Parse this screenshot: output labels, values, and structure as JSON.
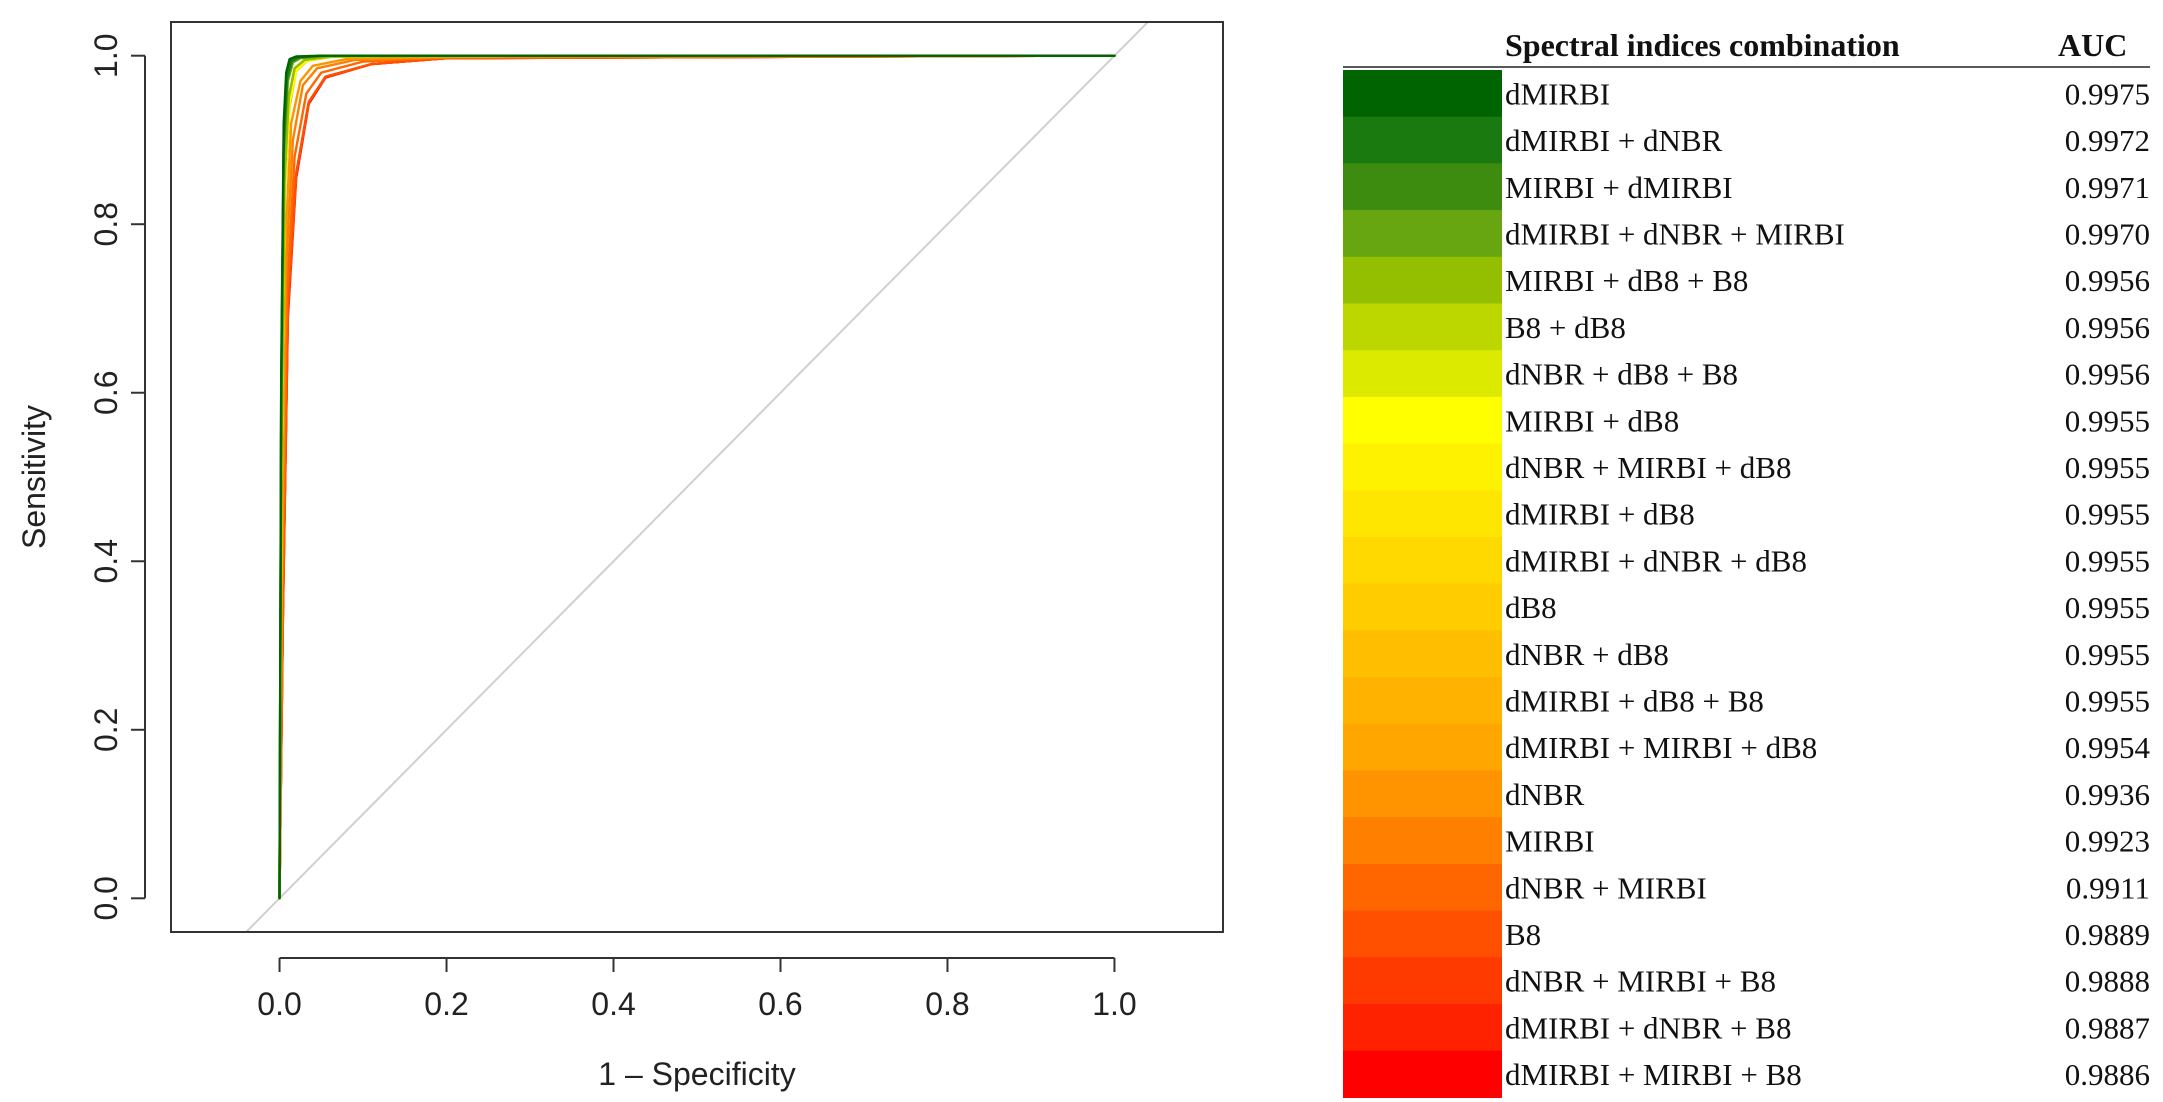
{
  "chart_data": {
    "type": "line",
    "xlabel": "1 – Specificity",
    "ylabel": "Sensitivity",
    "xlim": [
      -0.13,
      1.13
    ],
    "ylim": [
      -0.04,
      1.04
    ],
    "x_ticks": [
      "0.0",
      "0.2",
      "0.4",
      "0.6",
      "0.8",
      "1.0"
    ],
    "y_ticks": [
      "0.0",
      "0.2",
      "0.4",
      "0.6",
      "0.8",
      "1.0"
    ],
    "reference_line": {
      "x": [
        -0.04,
        1.04
      ],
      "y": [
        -0.04,
        1.04
      ],
      "color": "#d0d0d0"
    },
    "grid": false,
    "legend_position": "right",
    "legend_header": {
      "name": "Spectral indices combination",
      "auc": "AUC"
    },
    "series": [
      {
        "name": "dMIRBI",
        "auc": "0.9975",
        "color": "#006400",
        "x": [
          0,
          0.002,
          0.005,
          0.008,
          0.012,
          0.02,
          0.05,
          0.3,
          1
        ],
        "y": [
          0,
          0.62,
          0.92,
          0.98,
          0.996,
          0.999,
          1,
          1,
          1
        ]
      },
      {
        "name": "dMIRBI + dNBR",
        "auc": "0.9972",
        "color": "#1a7a10",
        "x": [
          0,
          0.002,
          0.005,
          0.009,
          0.014,
          0.022,
          0.05,
          0.3,
          1
        ],
        "y": [
          0,
          0.6,
          0.9,
          0.975,
          0.994,
          0.998,
          1,
          1,
          1
        ]
      },
      {
        "name": "MIRBI + dMIRBI",
        "auc": "0.9971",
        "color": "#3d8c10",
        "x": [
          0,
          0.002,
          0.005,
          0.009,
          0.015,
          0.024,
          0.05,
          0.3,
          1
        ],
        "y": [
          0,
          0.58,
          0.89,
          0.972,
          0.993,
          0.998,
          1,
          1,
          1
        ]
      },
      {
        "name": "dMIRBI + dNBR + MIRBI",
        "auc": "0.9970",
        "color": "#67a610",
        "x": [
          0,
          0.002,
          0.005,
          0.01,
          0.016,
          0.025,
          0.06,
          0.3,
          1
        ],
        "y": [
          0,
          0.57,
          0.88,
          0.97,
          0.992,
          0.997,
          1,
          1,
          1
        ]
      },
      {
        "name": "MIRBI + dB8 + B8",
        "auc": "0.9956",
        "color": "#94bf00",
        "x": [
          0,
          0.002,
          0.006,
          0.011,
          0.018,
          0.03,
          0.06,
          0.3,
          1
        ],
        "y": [
          0,
          0.5,
          0.85,
          0.95,
          0.985,
          0.995,
          0.999,
          1,
          1
        ]
      },
      {
        "name": "B8 + dB8",
        "auc": "0.9956",
        "color": "#bcd600",
        "x": [
          0,
          0.002,
          0.006,
          0.011,
          0.018,
          0.03,
          0.06,
          0.3,
          1
        ],
        "y": [
          0,
          0.5,
          0.85,
          0.95,
          0.985,
          0.995,
          0.999,
          1,
          1
        ]
      },
      {
        "name": "dNBR + dB8 + B8",
        "auc": "0.9956",
        "color": "#dcea00",
        "x": [
          0,
          0.002,
          0.006,
          0.011,
          0.018,
          0.03,
          0.06,
          0.3,
          1
        ],
        "y": [
          0,
          0.5,
          0.85,
          0.95,
          0.985,
          0.995,
          0.999,
          1,
          1
        ]
      },
      {
        "name": "MIRBI + dB8",
        "auc": "0.9955",
        "color": "#ffff00",
        "x": [
          0,
          0.002,
          0.006,
          0.012,
          0.02,
          0.032,
          0.06,
          0.3,
          1
        ],
        "y": [
          0,
          0.48,
          0.84,
          0.945,
          0.983,
          0.994,
          0.999,
          1,
          1
        ]
      },
      {
        "name": "dNBR + MIRBI + dB8",
        "auc": "0.9955",
        "color": "#fff200",
        "x": [
          0,
          0.002,
          0.006,
          0.012,
          0.02,
          0.032,
          0.06,
          0.3,
          1
        ],
        "y": [
          0,
          0.48,
          0.84,
          0.945,
          0.983,
          0.994,
          0.999,
          1,
          1
        ]
      },
      {
        "name": "dMIRBI + dB8",
        "auc": "0.9955",
        "color": "#ffe600",
        "x": [
          0,
          0.002,
          0.006,
          0.012,
          0.02,
          0.032,
          0.06,
          0.3,
          1
        ],
        "y": [
          0,
          0.48,
          0.84,
          0.945,
          0.983,
          0.994,
          0.999,
          1,
          1
        ]
      },
      {
        "name": "dMIRBI + dNBR + dB8",
        "auc": "0.9955",
        "color": "#ffd900",
        "x": [
          0,
          0.002,
          0.006,
          0.012,
          0.02,
          0.032,
          0.06,
          0.3,
          1
        ],
        "y": [
          0,
          0.48,
          0.84,
          0.945,
          0.983,
          0.994,
          0.999,
          1,
          1
        ]
      },
      {
        "name": "dB8",
        "auc": "0.9955",
        "color": "#ffcc00",
        "x": [
          0,
          0.002,
          0.006,
          0.012,
          0.02,
          0.032,
          0.06,
          0.3,
          1
        ],
        "y": [
          0,
          0.48,
          0.84,
          0.945,
          0.983,
          0.994,
          0.999,
          1,
          1
        ]
      },
      {
        "name": "dNBR + dB8",
        "auc": "0.9955",
        "color": "#ffbf00",
        "x": [
          0,
          0.002,
          0.006,
          0.012,
          0.02,
          0.032,
          0.06,
          0.3,
          1
        ],
        "y": [
          0,
          0.48,
          0.84,
          0.945,
          0.983,
          0.994,
          0.999,
          1,
          1
        ]
      },
      {
        "name": "dMIRBI + dB8 + B8",
        "auc": "0.9955",
        "color": "#ffb300",
        "x": [
          0,
          0.002,
          0.006,
          0.012,
          0.02,
          0.032,
          0.06,
          0.3,
          1
        ],
        "y": [
          0,
          0.48,
          0.84,
          0.945,
          0.983,
          0.994,
          0.999,
          1,
          1
        ]
      },
      {
        "name": "dMIRBI + MIRBI + dB8",
        "auc": "0.9954",
        "color": "#ffa600",
        "x": [
          0,
          0.002,
          0.006,
          0.012,
          0.02,
          0.033,
          0.065,
          0.3,
          1
        ],
        "y": [
          0,
          0.47,
          0.83,
          0.94,
          0.982,
          0.994,
          0.999,
          1,
          1
        ]
      },
      {
        "name": "dNBR",
        "auc": "0.9936",
        "color": "#ff9400",
        "x": [
          0,
          0.003,
          0.007,
          0.014,
          0.025,
          0.04,
          0.08,
          0.2,
          0.4,
          1
        ],
        "y": [
          0,
          0.4,
          0.78,
          0.92,
          0.97,
          0.988,
          0.996,
          0.999,
          1,
          1
        ]
      },
      {
        "name": "MIRBI",
        "auc": "0.9923",
        "color": "#ff7f00",
        "x": [
          0,
          0.003,
          0.008,
          0.016,
          0.028,
          0.045,
          0.09,
          0.2,
          0.94,
          1
        ],
        "y": [
          0,
          0.38,
          0.75,
          0.9,
          0.965,
          0.985,
          0.995,
          0.998,
          1,
          1
        ]
      },
      {
        "name": "dNBR + MIRBI",
        "auc": "0.9911",
        "color": "#ff6600",
        "x": [
          0,
          0.004,
          0.009,
          0.018,
          0.032,
          0.05,
          0.1,
          0.2,
          0.94,
          1
        ],
        "y": [
          0,
          0.36,
          0.72,
          0.88,
          0.955,
          0.98,
          0.993,
          0.998,
          1,
          1
        ]
      },
      {
        "name": "B8",
        "auc": "0.9889",
        "color": "#ff5000",
        "x": [
          0,
          0.004,
          0.01,
          0.02,
          0.035,
          0.055,
          0.11,
          0.2,
          0.94,
          1
        ],
        "y": [
          0,
          0.34,
          0.7,
          0.86,
          0.945,
          0.975,
          0.99,
          0.997,
          1,
          1
        ]
      },
      {
        "name": "dNBR + MIRBI + B8",
        "auc": "0.9888",
        "color": "#ff3a00",
        "x": [
          0,
          0.004,
          0.01,
          0.02,
          0.035,
          0.055,
          0.11,
          0.2,
          0.94,
          1
        ],
        "y": [
          0,
          0.34,
          0.7,
          0.86,
          0.945,
          0.975,
          0.99,
          0.997,
          1,
          1
        ]
      },
      {
        "name": "dMIRBI + dNBR + B8",
        "auc": "0.9887",
        "color": "#ff2200",
        "x": [
          0,
          0.004,
          0.01,
          0.02,
          0.035,
          0.055,
          0.11,
          0.2,
          0.94,
          1
        ],
        "y": [
          0,
          0.34,
          0.7,
          0.86,
          0.945,
          0.975,
          0.99,
          0.997,
          1,
          1
        ]
      },
      {
        "name": "dMIRBI + MIRBI + B8",
        "auc": "0.9886",
        "color": "#ff0000",
        "x": [
          0,
          0.004,
          0.01,
          0.02,
          0.035,
          0.055,
          0.11,
          0.2,
          0.94,
          1
        ],
        "y": [
          0,
          0.33,
          0.69,
          0.855,
          0.943,
          0.974,
          0.99,
          0.997,
          1,
          1
        ]
      }
    ]
  }
}
